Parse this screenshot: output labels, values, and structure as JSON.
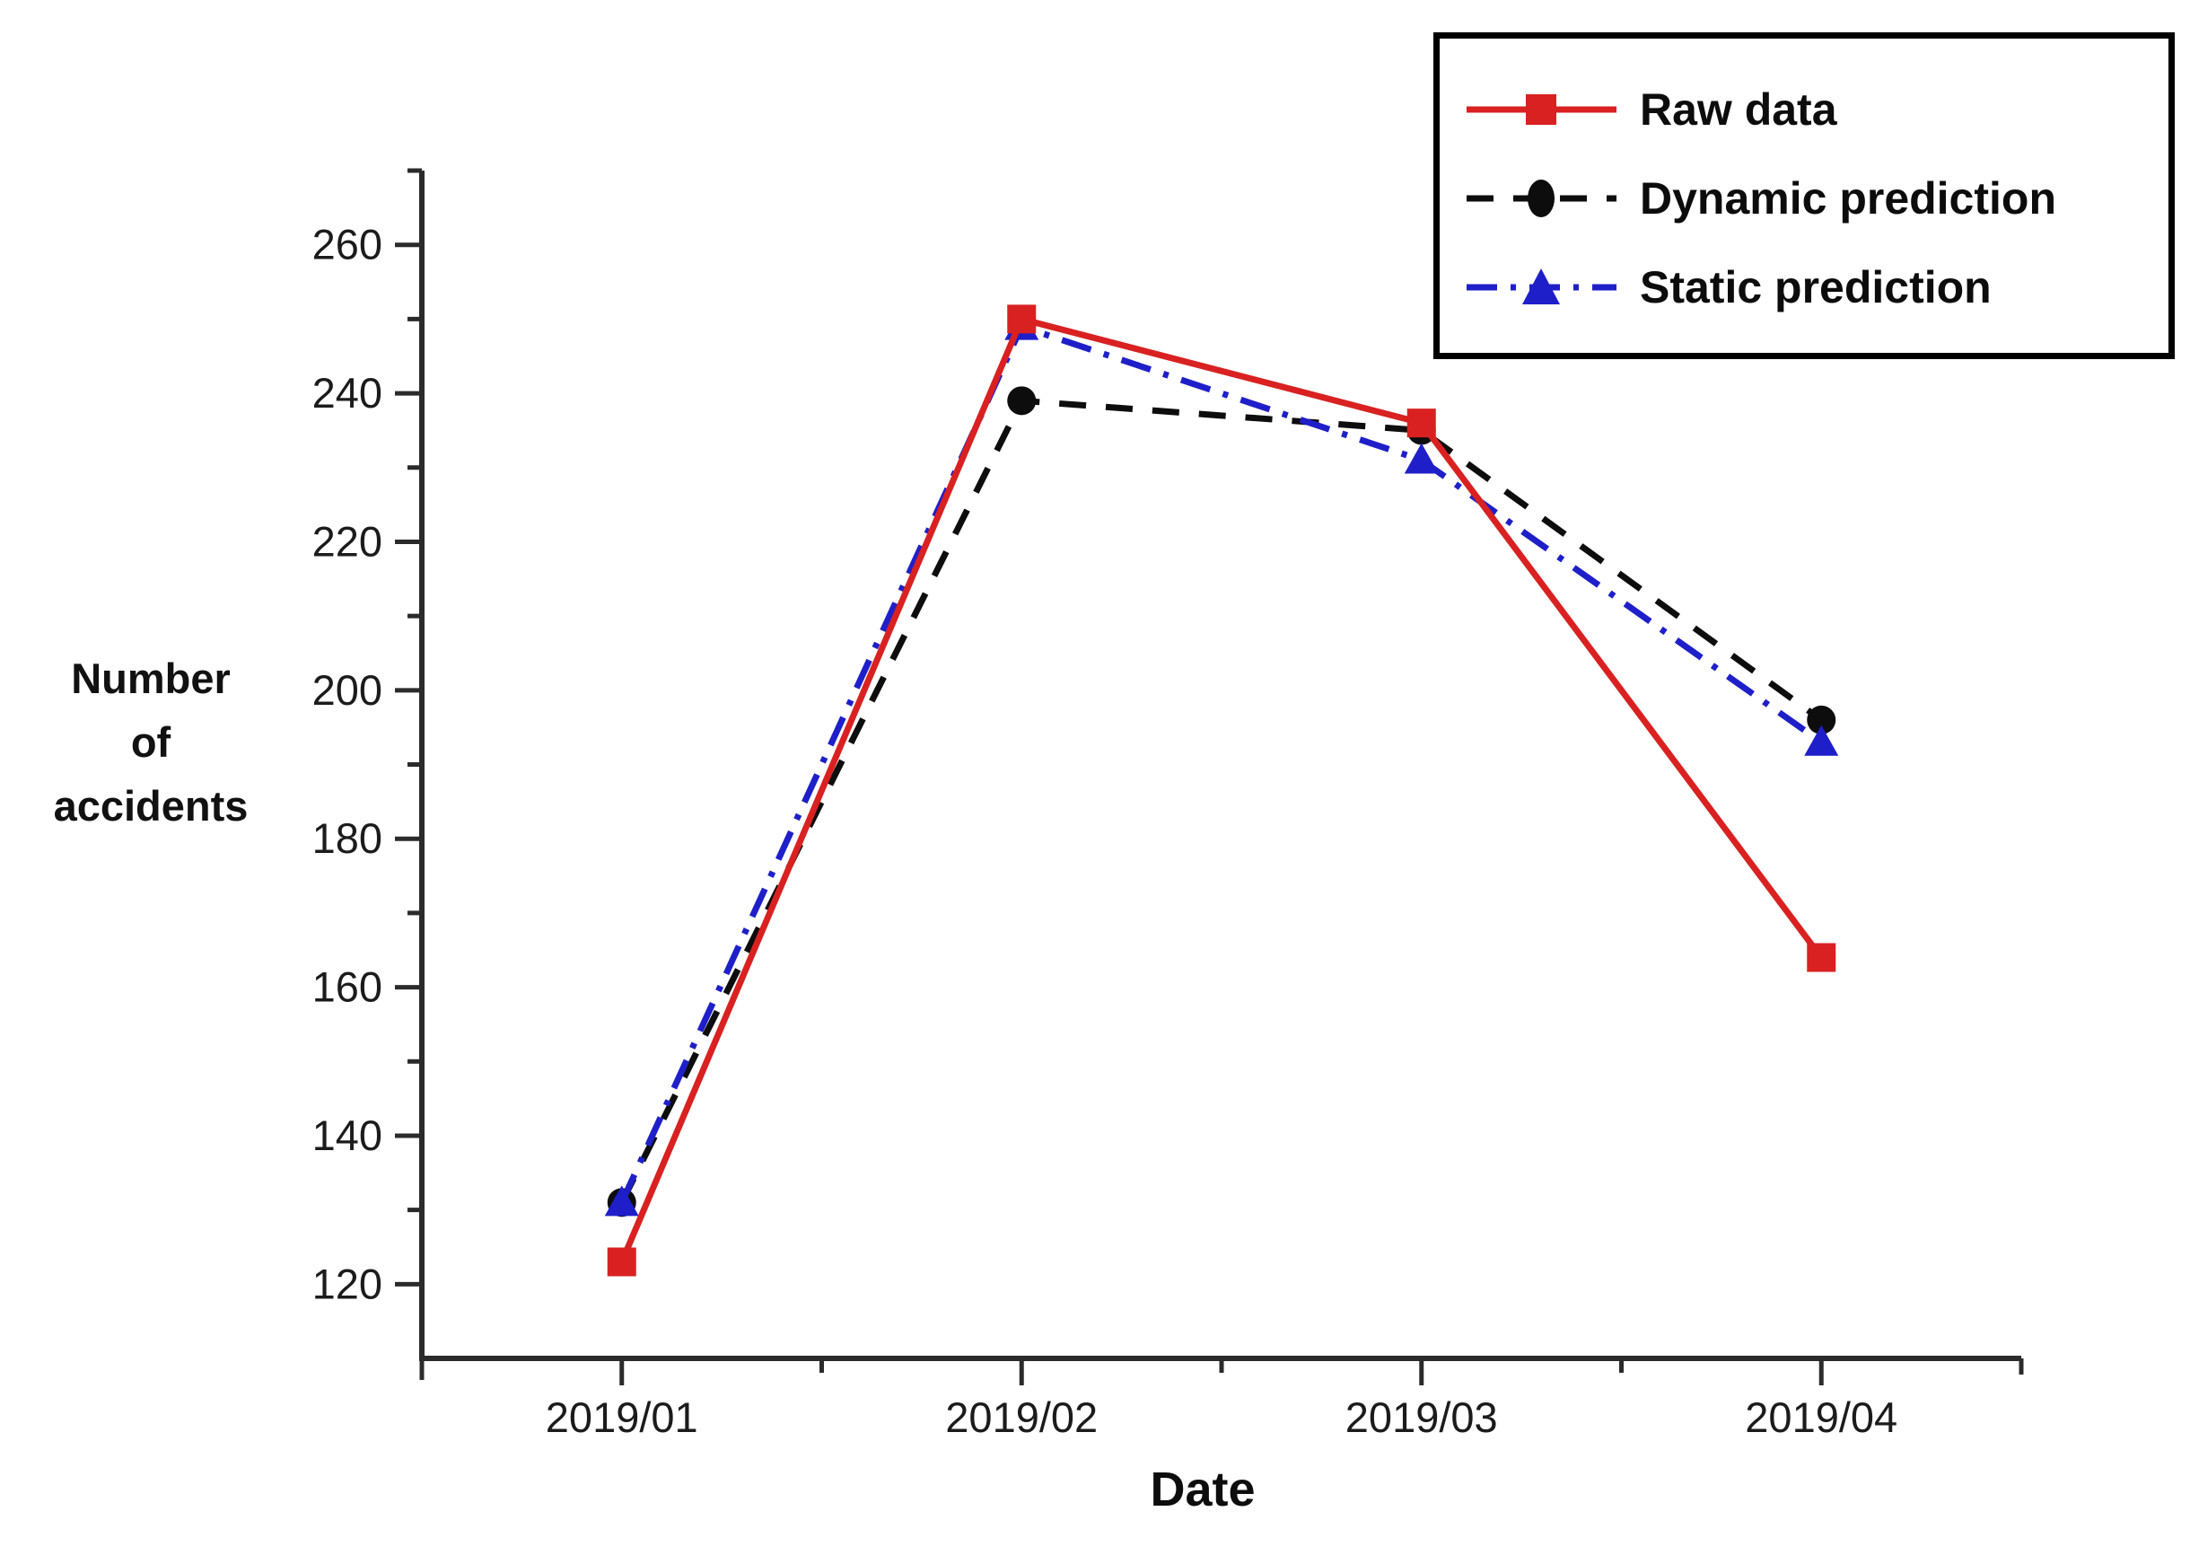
{
  "chart_data": {
    "type": "line",
    "title": "",
    "xlabel": "Date",
    "ylabel": "Number of accidents",
    "ylabel_lines": [
      "Number",
      "of",
      "accidents"
    ],
    "categories": [
      "2019/01",
      "2019/02",
      "2019/03",
      "2019/04"
    ],
    "series": [
      {
        "name": "Raw data",
        "color": "#d92121",
        "marker": "square",
        "line": "solid",
        "values": [
          123,
          250,
          236,
          164
        ]
      },
      {
        "name": "Dynamic prediction",
        "color": "#0d0d0d",
        "marker": "circle",
        "line": "dashed",
        "values": [
          131,
          239,
          235,
          196
        ]
      },
      {
        "name": "Static prediction",
        "color": "#1f1fc9",
        "marker": "triangle",
        "line": "dashdot",
        "values": [
          131,
          249,
          231,
          193
        ]
      }
    ],
    "y_axis": {
      "min": 110,
      "max": 270,
      "major_ticks": [
        120,
        140,
        160,
        180,
        200,
        220,
        240,
        260
      ],
      "minor_step": 10
    },
    "x_axis": {
      "tick_labels": [
        "2019/01",
        "2019/02",
        "2019/03",
        "2019/04"
      ]
    },
    "legend": {
      "position": "top-right",
      "border": true
    },
    "grid": false,
    "axis_color": "#2b2b2b",
    "background_color": "#ffffff"
  }
}
